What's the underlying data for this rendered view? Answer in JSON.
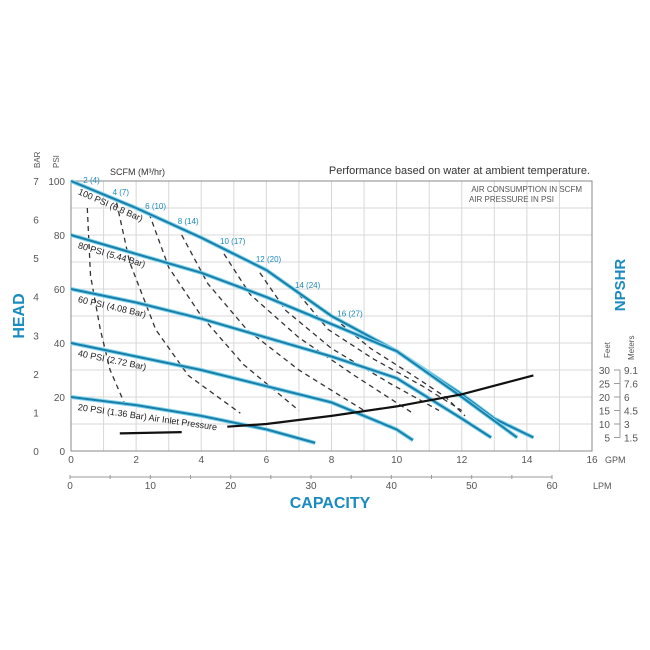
{
  "chart_data": {
    "type": "line",
    "title": "Performance based on water at ambient temperature.",
    "notes": [
      "AIR CONSUMPTION IN SCFM",
      "AIR PRESSURE IN PSI"
    ],
    "xlabel": "CAPACITY",
    "ylabel": "HEAD",
    "y2label": "NPSHR",
    "x_unit_primary": "GPM",
    "x_unit_secondary": "LPM",
    "y_unit_primary": "PSI",
    "y_unit_secondary": "BAR",
    "y2_units": [
      "Feet",
      "Meters"
    ],
    "air_label": "SCFM (M³/hr)",
    "xlim": [
      0,
      16
    ],
    "ylim": [
      0,
      100
    ],
    "grid": true,
    "x_ticks": [
      0,
      2,
      4,
      6,
      8,
      10,
      12,
      14,
      16
    ],
    "x_ticks_lpm": [
      0,
      10,
      20,
      30,
      40,
      50,
      60
    ],
    "y_ticks_psi": [
      0,
      20,
      40,
      60,
      80,
      100
    ],
    "y_ticks_bar": [
      0,
      1,
      2,
      3,
      4,
      5,
      6,
      7
    ],
    "npshr_ticks_feet": [
      30,
      25,
      20,
      15,
      10,
      5
    ],
    "npshr_ticks_meters": [
      "9.1",
      "7.6",
      "6",
      "4.5",
      "3",
      "1.5"
    ],
    "colors": {
      "pressure": "#1a7fa8",
      "pressure_glow": "#7fd3ee",
      "air": "#333333",
      "npshr": "#111111",
      "label": "#1a8bbf"
    },
    "pressure_curves": [
      {
        "name": "100 PSI (6.8 Bar)",
        "points": [
          [
            0,
            100
          ],
          [
            2,
            90
          ],
          [
            4,
            79
          ],
          [
            6,
            67
          ],
          [
            8,
            50
          ],
          [
            10,
            37
          ],
          [
            12,
            21
          ],
          [
            13,
            12
          ],
          [
            14.2,
            5
          ]
        ]
      },
      {
        "name": "80 PSI (5.44 Bar)",
        "points": [
          [
            0,
            80
          ],
          [
            2,
            73
          ],
          [
            4,
            66
          ],
          [
            6,
            57
          ],
          [
            8,
            47
          ],
          [
            10,
            37
          ],
          [
            12,
            20
          ],
          [
            13.7,
            5
          ]
        ]
      },
      {
        "name": "60 PSI (4.08 Bar)",
        "points": [
          [
            0,
            60
          ],
          [
            2,
            55
          ],
          [
            4,
            49
          ],
          [
            6,
            42
          ],
          [
            8,
            35
          ],
          [
            10,
            27
          ],
          [
            12,
            12
          ],
          [
            12.9,
            5
          ]
        ]
      },
      {
        "name": "40 PSI (2.72 Bar)",
        "points": [
          [
            0,
            40
          ],
          [
            2,
            35
          ],
          [
            4,
            30
          ],
          [
            6,
            24
          ],
          [
            8,
            18
          ],
          [
            10,
            8
          ],
          [
            10.5,
            4
          ]
        ]
      },
      {
        "name": "20 PSI (1.36 Bar) Air Inlet Pressure",
        "points": [
          [
            0,
            20
          ],
          [
            2,
            17
          ],
          [
            4,
            13
          ],
          [
            6,
            8
          ],
          [
            7.5,
            3
          ]
        ]
      }
    ],
    "air_curves": [
      {
        "name": "2 (4)",
        "points": [
          [
            0.5,
            90
          ],
          [
            0.6,
            65
          ],
          [
            0.9,
            45
          ],
          [
            1.2,
            30
          ],
          [
            1.7,
            16
          ]
        ]
      },
      {
        "name": "4 (7)",
        "points": [
          [
            1.4,
            92
          ],
          [
            1.8,
            70
          ],
          [
            2.6,
            45
          ],
          [
            3.6,
            28
          ],
          [
            5.2,
            14
          ]
        ]
      },
      {
        "name": "6 (10)",
        "points": [
          [
            2.4,
            88
          ],
          [
            3,
            68
          ],
          [
            4,
            50
          ],
          [
            5.3,
            32
          ],
          [
            7,
            15
          ]
        ]
      },
      {
        "name": "8 (14)",
        "points": [
          [
            3.4,
            80
          ],
          [
            4.2,
            62
          ],
          [
            5.4,
            45
          ],
          [
            7,
            30
          ],
          [
            9,
            15
          ]
        ]
      },
      {
        "name": "10 (17)",
        "points": [
          [
            4.7,
            73
          ],
          [
            5.5,
            58
          ],
          [
            7,
            42
          ],
          [
            8.7,
            28
          ],
          [
            10.5,
            14
          ]
        ]
      },
      {
        "name": "12 (20)",
        "points": [
          [
            5.8,
            66
          ],
          [
            6.6,
            52
          ],
          [
            8,
            38
          ],
          [
            9.8,
            25
          ],
          [
            11.3,
            15
          ]
        ]
      },
      {
        "name": "14 (24)",
        "points": [
          [
            7,
            58
          ],
          [
            7.9,
            45
          ],
          [
            9.3,
            34
          ],
          [
            10.8,
            24
          ],
          [
            12,
            15
          ]
        ]
      },
      {
        "name": "16 (27)",
        "points": [
          [
            8.3,
            47
          ],
          [
            9.2,
            38
          ],
          [
            10.5,
            28
          ],
          [
            11.5,
            20
          ],
          [
            12.1,
            13
          ]
        ]
      }
    ],
    "npshr_curve": {
      "unit": "feet",
      "segments": [
        [
          [
            1.5,
            6.5
          ],
          [
            3.4,
            7
          ]
        ],
        [
          [
            4.8,
            9
          ],
          [
            6,
            10
          ],
          [
            8,
            13
          ],
          [
            10,
            16.5
          ],
          [
            12,
            21
          ],
          [
            14.2,
            28
          ]
        ]
      ]
    }
  }
}
